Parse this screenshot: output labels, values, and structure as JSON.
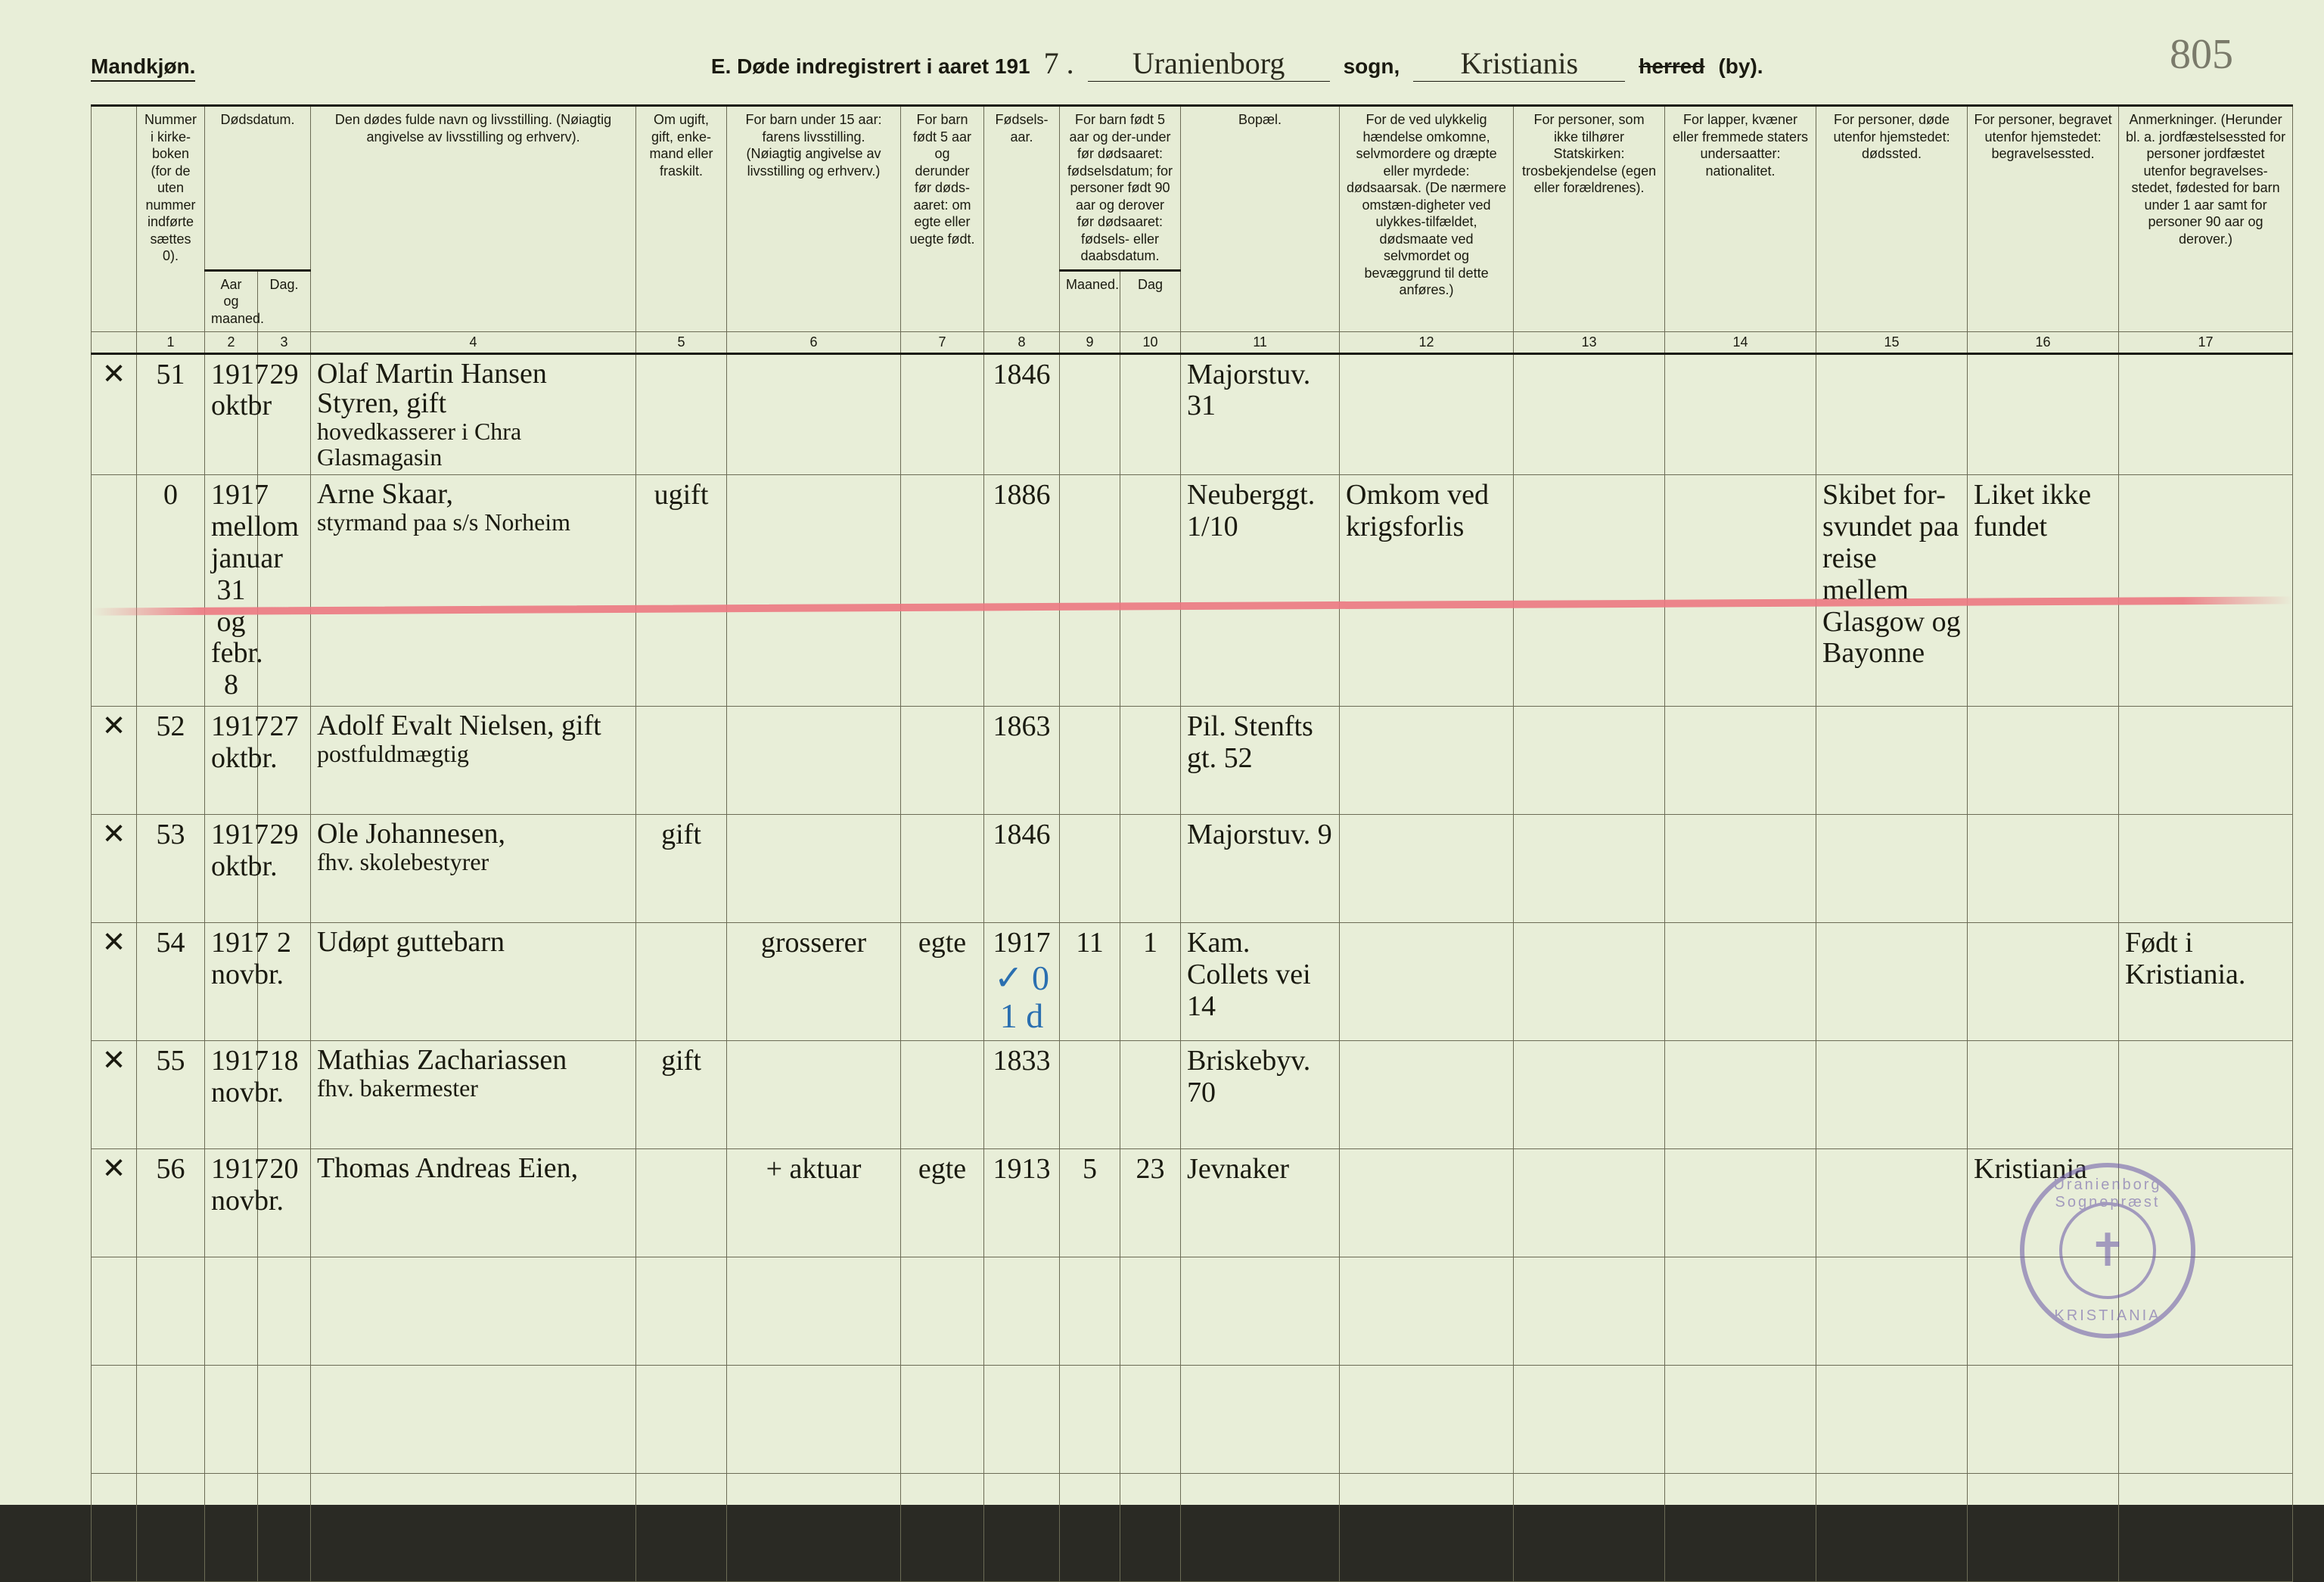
{
  "page_number_script": "805",
  "header": {
    "mandkjon": "Mandkjøn.",
    "title_prefix": "E.  Døde indregistrert i aaret 191",
    "year_suffix": "7 .",
    "parish_script": "Uranienborg",
    "sogn_label": "sogn,",
    "district_script": "Kristianis",
    "herred_struck": "herred",
    "by_label": "(by)."
  },
  "columns": {
    "c0_margin": "",
    "c1": "Nummer i kirke-boken (for de uten nummer indførte sættes 0).",
    "c2_top": "Dødsdatum.",
    "c2_a": "Aar og maaned.",
    "c2_b": "Dag.",
    "c4": "Den dødes fulde navn og livsstilling. (Nøiagtig angivelse av livsstilling og erhverv).",
    "c5": "Om ugift, gift, enke-mand eller fraskilt.",
    "c6": "For barn under 15 aar: farens livsstilling. (Nøiagtig angivelse av livsstilling og erhverv.)",
    "c7": "For barn født 5 aar og derunder før døds-aaret: om egte eller uegte født.",
    "c8": "Fødsels-aar.",
    "c9_top": "For barn født 5 aar og der-under før dødsaaret: fødselsdatum; for personer født 90 aar og derover før dødsaaret: fødsels- eller daabsdatum.",
    "c9_a": "Maaned.",
    "c9_b": "Dag",
    "c11": "Bopæl.",
    "c12": "For de ved ulykkelig hændelse omkomne, selvmordere og dræpte eller myrdede: dødsaarsak. (De nærmere omstæn-digheter ved ulykkes-tilfældet, dødsmaate ved selvmordet og bevæggrund til dette anføres.)",
    "c13": "For personer, som ikke tilhører Statskirken: trosbekjendelse (egen eller forældrenes).",
    "c14": "For lapper, kvæner eller fremmede staters undersaatter: nationalitet.",
    "c15": "For personer, døde utenfor hjemstedet: dødssted.",
    "c16": "For personer, begravet utenfor hjemstedet: begravelsessted.",
    "c17": "Anmerkninger. (Herunder bl. a. jordfæstelsessted for personer jordfæstet utenfor begravelses-stedet, fødested for barn under 1 aar samt for personer 90 aar og derover.)"
  },
  "colnums": [
    "",
    "1",
    "2",
    "3",
    "4",
    "5",
    "6",
    "7",
    "8",
    "9",
    "10",
    "11",
    "12",
    "13",
    "14",
    "15",
    "16",
    "17"
  ],
  "rows": [
    {
      "margin": "✕",
      "num": "51",
      "aar_mnd": "1917 oktbr",
      "dag": "29",
      "navn_l1": "Olaf Martin Hansen Styren, gift",
      "navn_l2": "hovedkasserer i Chra Glasmagasin",
      "c5": "",
      "c6": "",
      "c7": "",
      "c8": "1846",
      "c9": "",
      "c10": "",
      "bopel": "Majorstuv. 31",
      "c12": "",
      "c13": "",
      "c14": "",
      "c15": "",
      "c16": "",
      "c17": ""
    },
    {
      "margin": "",
      "num": "0",
      "aar_mnd": "1917 mellom januar 31 og febr. 8",
      "dag": "",
      "navn_l1": "Arne Skaar,",
      "navn_l2": "styrmand paa s/s Norheim",
      "c5": "ugift",
      "c6": "",
      "c7": "",
      "c8": "1886",
      "c9": "",
      "c10": "",
      "bopel": "Neuberggt. 1/10",
      "c12": "Omkom ved krigsforlis",
      "c13": "",
      "c14": "",
      "c15": "Skibet for-svundet paa reise mellem Glasgow og Bayonne",
      "c16": "Liket ikke fundet",
      "c17": "",
      "redline": true
    },
    {
      "margin": "✕",
      "num": "52",
      "aar_mnd": "1917 oktbr.",
      "dag": "27",
      "navn_l1": "Adolf Evalt Nielsen, gift",
      "navn_l2": "postfuldmægtig",
      "c5": "",
      "c6": "",
      "c7": "",
      "c8": "1863",
      "c9": "",
      "c10": "",
      "bopel": "Pil. Stenfts gt. 52",
      "c12": "",
      "c13": "",
      "c14": "",
      "c15": "",
      "c16": "",
      "c17": ""
    },
    {
      "margin": "✕",
      "num": "53",
      "aar_mnd": "1917 oktbr.",
      "dag": "29",
      "navn_l1": "Ole Johannesen,",
      "navn_l2": "fhv. skolebestyrer",
      "c5": "gift",
      "c6": "",
      "c7": "",
      "c8": "1846",
      "c9": "",
      "c10": "",
      "bopel": "Majorstuv. 9",
      "c12": "",
      "c13": "",
      "c14": "",
      "c15": "",
      "c16": "",
      "c17": ""
    },
    {
      "margin": "✕",
      "num": "54",
      "aar_mnd": "1917 novbr.",
      "dag": "2",
      "navn_l1": "Udøpt guttebarn",
      "navn_l2": "",
      "c5": "",
      "c6": "grosserer",
      "c7": "egte",
      "c8": "1917",
      "blue": "✓  0 1 d",
      "c9": "11",
      "c10": "1",
      "bopel": "Kam. Collets vei 14",
      "c12": "",
      "c13": "",
      "c14": "",
      "c15": "",
      "c16": "",
      "c17": "Født i Kristiania."
    },
    {
      "margin": "✕",
      "num": "55",
      "aar_mnd": "1917 novbr.",
      "dag": "18",
      "navn_l1": "Mathias Zachariassen",
      "navn_l2": "fhv. bakermester",
      "c5": "gift",
      "c6": "",
      "c7": "",
      "c8": "1833",
      "c9": "",
      "c10": "",
      "bopel": "Briskebyv. 70",
      "c12": "",
      "c13": "",
      "c14": "",
      "c15": "",
      "c16": "",
      "c17": ""
    },
    {
      "margin": "✕",
      "num": "56",
      "aar_mnd": "1917 novbr.",
      "dag": "20",
      "navn_l1": "Thomas Andreas Eien,",
      "navn_l2": "",
      "c5": "",
      "c6": "+ aktuar",
      "c7": "egte",
      "c8": "1913",
      "c9": "5",
      "c10": "23",
      "bopel": "Jevnaker",
      "c12": "",
      "c13": "",
      "c14": "",
      "c15": "",
      "c16": "Kristiania",
      "c17": ""
    },
    {
      "blank": true
    },
    {
      "blank": true
    },
    {
      "blank": true
    }
  ],
  "stamp": {
    "top_text": "Uranienborg Sognepræst",
    "bottom_text": "KRISTIANIA",
    "symbol": "✝"
  },
  "colors": {
    "paper": "#e8eed8",
    "ink": "#1a1a10",
    "rule": "#6b6b55",
    "red": "#ec7882",
    "blue": "#2a6fb0",
    "stamp": "#6a56a8"
  }
}
